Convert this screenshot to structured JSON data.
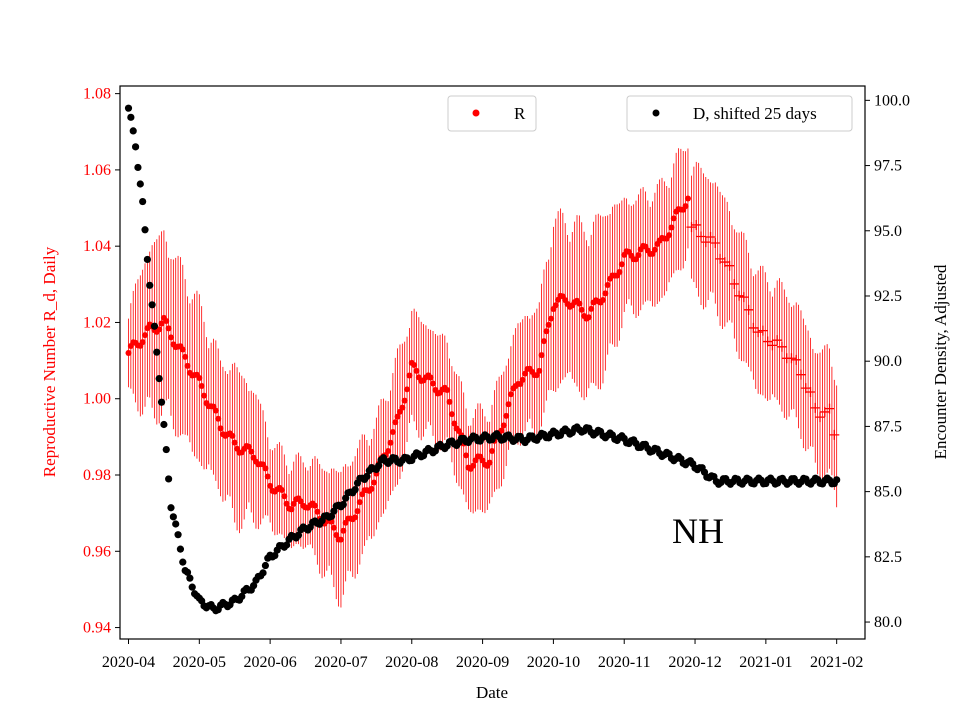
{
  "chart_data": {
    "type": "scatter",
    "annotation": "NH",
    "xlabel": "Date",
    "x_ticks": [
      "2020-04",
      "2020-05",
      "2020-06",
      "2020-07",
      "2020-08",
      "2020-09",
      "2020-10",
      "2020-11",
      "2020-12",
      "2021-01",
      "2021-02"
    ],
    "x_range_months": [
      -0.12,
      10.4
    ],
    "left_axis": {
      "label": "Reproductive Number R_d, Daily",
      "color": "#ff0000",
      "range": [
        0.937,
        1.082
      ],
      "ticks": [
        "0.94",
        "0.96",
        "0.98",
        "1.00",
        "1.02",
        "1.04",
        "1.06",
        "1.08"
      ]
    },
    "right_axis": {
      "label": "Encounter Density, Adjusted",
      "color": "#000000",
      "range": [
        79.35,
        100.55
      ],
      "ticks": [
        "80.0",
        "82.5",
        "85.0",
        "87.5",
        "90.0",
        "92.5",
        "95.0",
        "97.5",
        "100.0"
      ]
    },
    "legend": [
      {
        "label": "R",
        "color": "#ff0000",
        "position": "top-center"
      },
      {
        "label": "D, shifted 25 days",
        "color": "#000000",
        "position": "top-right"
      }
    ],
    "series": [
      {
        "name": "R",
        "axis": "left",
        "color": "#ff0000",
        "marker": "dot",
        "x_months": [
          0.0,
          0.3,
          0.5,
          1.0,
          1.3,
          1.5,
          1.8,
          2.0,
          2.3,
          2.5,
          3.0,
          3.5,
          3.8,
          4.0,
          4.5,
          4.8,
          5.1,
          5.5,
          5.8,
          6.0,
          6.2,
          6.5,
          6.8,
          7.0,
          7.5,
          7.9
        ],
        "values": [
          1.012,
          1.018,
          1.02,
          1.004,
          0.993,
          0.988,
          0.985,
          0.978,
          0.972,
          0.973,
          0.964,
          0.98,
          0.994,
          1.008,
          1.001,
          0.983,
          0.984,
          1.005,
          1.008,
          1.025,
          1.026,
          1.022,
          1.03,
          1.037,
          1.04,
          1.053
        ],
        "error_band": [
          0.012,
          0.024,
          0.025,
          0.022,
          0.018,
          0.022,
          0.018,
          0.012,
          0.012,
          0.012,
          0.018,
          0.015,
          0.018,
          0.016,
          0.015,
          0.014,
          0.014,
          0.016,
          0.018,
          0.024,
          0.022,
          0.024,
          0.022,
          0.016,
          0.016,
          0.016
        ]
      },
      {
        "name": "R (extended)",
        "axis": "left",
        "color": "#ff0000",
        "marker": "plus",
        "x_months": [
          7.95,
          8.1,
          8.3,
          8.5,
          8.7,
          8.9,
          9.1,
          9.3,
          9.5,
          9.7,
          9.9,
          10.0
        ],
        "values": [
          1.045,
          1.043,
          1.04,
          1.033,
          1.025,
          1.017,
          1.015,
          1.012,
          1.007,
          0.997,
          0.996,
          0.989
        ],
        "error_band": [
          0.018,
          0.018,
          0.018,
          0.017,
          0.017,
          0.017,
          0.017,
          0.017,
          0.017,
          0.017,
          0.018,
          0.018
        ]
      },
      {
        "name": "D, shifted 25 days",
        "axis": "right",
        "color": "#000000",
        "marker": "dot",
        "x_months": [
          0.0,
          0.1,
          0.2,
          0.3,
          0.45,
          0.6,
          0.8,
          1.0,
          1.2,
          1.5,
          1.8,
          2.0,
          2.3,
          2.5,
          2.8,
          3.0,
          3.3,
          3.6,
          3.9,
          4.2,
          4.5,
          4.8,
          5.2,
          5.6,
          6.0,
          6.2,
          6.4,
          6.7,
          7.0,
          7.3,
          7.6,
          8.0,
          8.3,
          8.6,
          9.0,
          9.5,
          10.0
        ],
        "values": [
          99.7,
          98.3,
          96.0,
          93.0,
          89.0,
          84.5,
          82.0,
          80.8,
          80.5,
          80.8,
          81.5,
          82.5,
          83.2,
          83.6,
          84.0,
          84.5,
          85.5,
          86.2,
          86.2,
          86.5,
          86.8,
          87.0,
          87.1,
          87.0,
          87.2,
          87.3,
          87.4,
          87.2,
          87.0,
          86.7,
          86.4,
          86.0,
          85.4,
          85.4,
          85.4,
          85.4,
          85.4
        ]
      }
    ]
  }
}
